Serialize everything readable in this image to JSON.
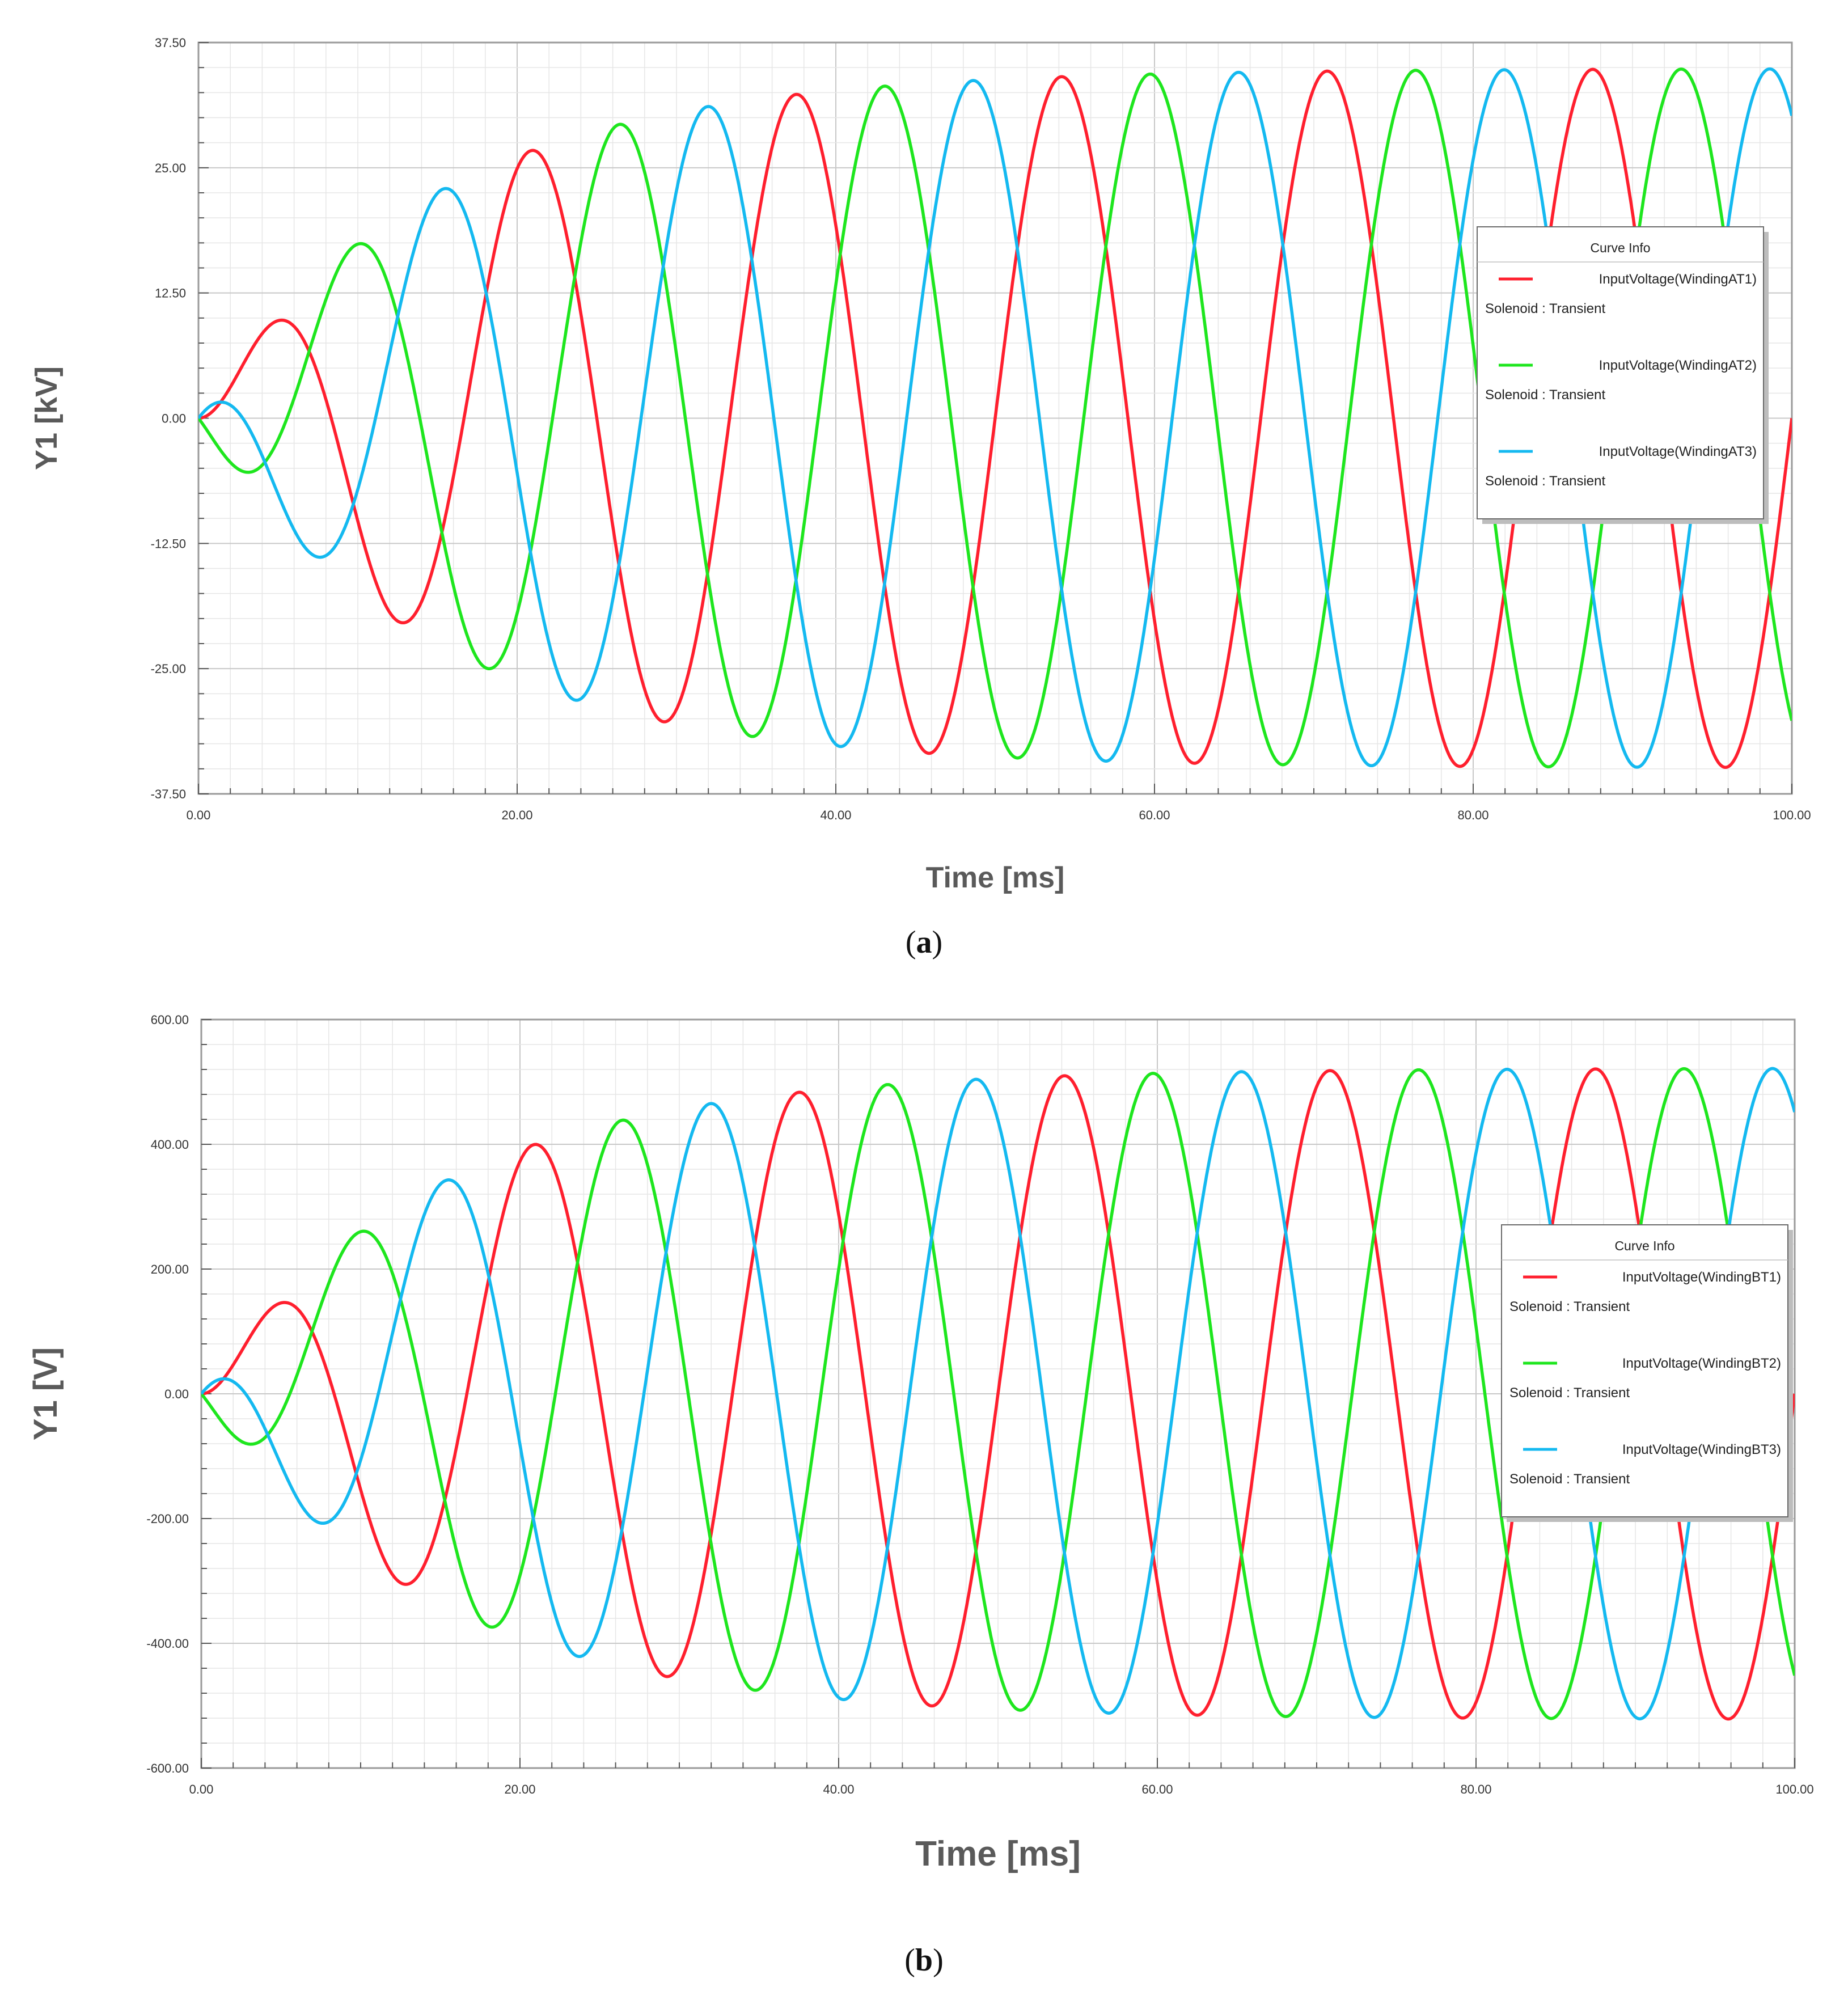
{
  "chart_data": [
    {
      "id": "a",
      "type": "line",
      "panel_label": "a",
      "xlabel": "Time [ms]",
      "ylabel": "Y1 [kV]",
      "xlim": [
        0,
        100
      ],
      "ylim": [
        -37.5,
        37.5
      ],
      "x_ticks": [
        "0.00",
        "20.00",
        "40.00",
        "60.00",
        "80.00",
        "100.00"
      ],
      "y_ticks": [
        "37.50",
        "25.00",
        "12.50",
        "0.00",
        "-12.50",
        "-25.00",
        "-37.50"
      ],
      "grid": true,
      "legend": {
        "title": "Curve Info",
        "placement": "right",
        "entries": [
          {
            "name": "InputVoltage(WindingAT1)",
            "sub": "Solenoid : Transient"
          },
          {
            "name": "InputVoltage(WindingAT2)",
            "sub": "Solenoid : Transient"
          },
          {
            "name": "InputVoltage(WindingAT3)",
            "sub": "Solenoid : Transient"
          }
        ]
      },
      "frequency_hz": 60,
      "envelope_time_constant_ms": 14.4,
      "series": [
        {
          "name": "InputVoltage(WindingAT1)",
          "color": "#ff1f2e",
          "phase_deg": 0,
          "peak_value": 34.9
        },
        {
          "name": "InputVoltage(WindingAT2)",
          "color": "#1ee61e",
          "phase_deg": -120,
          "peak_value": 34.9
        },
        {
          "name": "InputVoltage(WindingAT3)",
          "color": "#14b9f0",
          "phase_deg": 120,
          "peak_value": 34.9
        }
      ]
    },
    {
      "id": "b",
      "type": "line",
      "panel_label": "b",
      "xlabel": "Time [ms]",
      "ylabel": "Y1 [V]",
      "xlim": [
        0,
        100
      ],
      "ylim": [
        -600,
        600
      ],
      "x_ticks": [
        "0.00",
        "20.00",
        "40.00",
        "60.00",
        "80.00",
        "100.00"
      ],
      "y_ticks": [
        "600.00",
        "400.00",
        "200.00",
        "0.00",
        "-200.00",
        "-400.00",
        "-600.00"
      ],
      "grid": true,
      "legend": {
        "title": "Curve Info",
        "placement": "right",
        "entries": [
          {
            "name": "InputVoltage(WindingBT1)",
            "sub": "Solenoid : Transient"
          },
          {
            "name": "InputVoltage(WindingBT2)",
            "sub": "Solenoid : Transient"
          },
          {
            "name": "InputVoltage(WindingBT3)",
            "sub": "Solenoid : Transient"
          }
        ]
      },
      "frequency_hz": 60,
      "envelope_time_constant_ms": 14.4,
      "series": [
        {
          "name": "InputVoltage(WindingBT1)",
          "color": "#ff1f2e",
          "phase_deg": 0,
          "peak_value": 522
        },
        {
          "name": "InputVoltage(WindingBT2)",
          "color": "#1ee61e",
          "phase_deg": -120,
          "peak_value": 522
        },
        {
          "name": "InputVoltage(WindingBT3)",
          "color": "#14b9f0",
          "phase_deg": 120,
          "peak_value": 522
        }
      ]
    }
  ]
}
